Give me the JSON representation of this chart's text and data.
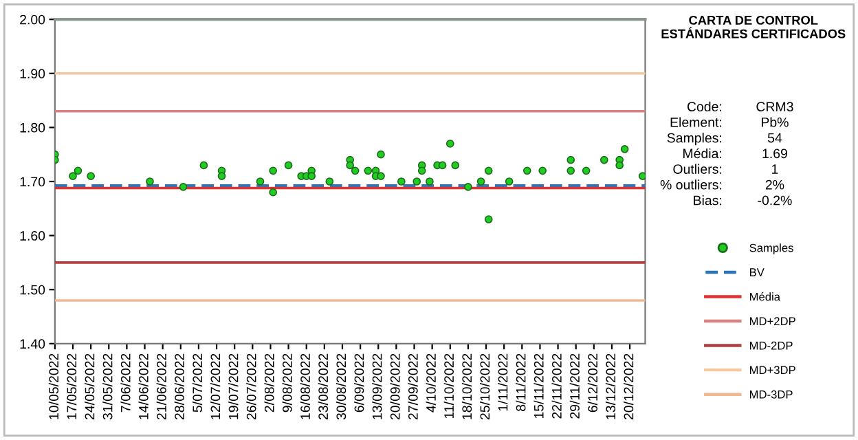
{
  "chart_data": {
    "type": "scatter",
    "title": "CARTA DE CONTROL\nESTÁNDARES CERTIFICADOS",
    "annotations": [
      "Code:",
      "CRM3",
      "Element:",
      "Pb%",
      "Samples:",
      "54",
      "Média:",
      "1.69",
      "Outliers:",
      "1",
      "% outliers:",
      "2%",
      "Bias:",
      "-0.2%"
    ],
    "series": [
      {
        "name": "Samples",
        "color": "#22cc22",
        "x": [
          "2022-05-10",
          "2022-05-10",
          "2022-05-17",
          "2022-05-19",
          "2022-05-24",
          "2022-06-16",
          "2022-06-29",
          "2022-07-07",
          "2022-07-14",
          "2022-07-14",
          "2022-07-29",
          "2022-08-03",
          "2022-08-03",
          "2022-08-09",
          "2022-08-14",
          "2022-08-16",
          "2022-08-18",
          "2022-08-18",
          "2022-08-25",
          "2022-09-02",
          "2022-09-02",
          "2022-09-04",
          "2022-09-09",
          "2022-09-12",
          "2022-09-12",
          "2022-09-14",
          "2022-09-14",
          "2022-09-22",
          "2022-09-28",
          "2022-09-30",
          "2022-09-30",
          "2022-10-03",
          "2022-10-06",
          "2022-10-08",
          "2022-10-11",
          "2022-10-13",
          "2022-10-18",
          "2022-10-23",
          "2022-10-26",
          "2022-10-26",
          "2022-11-03",
          "2022-11-10",
          "2022-11-16",
          "2022-11-27",
          "2022-11-27",
          "2022-12-03",
          "2022-12-10",
          "2022-12-16",
          "2022-12-16",
          "2022-12-18",
          "2022-12-25"
        ],
        "values": [
          1.75,
          1.74,
          1.71,
          1.72,
          1.71,
          1.7,
          1.69,
          1.73,
          1.72,
          1.71,
          1.7,
          1.72,
          1.68,
          1.73,
          1.71,
          1.71,
          1.72,
          1.71,
          1.7,
          1.74,
          1.73,
          1.72,
          1.72,
          1.72,
          1.71,
          1.71,
          1.75,
          1.7,
          1.7,
          1.73,
          1.72,
          1.7,
          1.73,
          1.73,
          1.77,
          1.73,
          1.69,
          1.7,
          1.72,
          1.63,
          1.7,
          1.72,
          1.72,
          1.74,
          1.72,
          1.72,
          1.74,
          1.74,
          1.73,
          1.76,
          1.71
        ]
      }
    ],
    "ref_lines": [
      {
        "axis": "y",
        "value": 1.692,
        "label": "BV",
        "color": "#2e75b6",
        "line_style": "dashed"
      },
      {
        "axis": "y",
        "value": 1.688,
        "label": "Média",
        "color": "#e03030",
        "line_style": "solid"
      },
      {
        "axis": "y",
        "value": 1.83,
        "label": "MD+2DP",
        "color": "#d98080",
        "line_style": "solid"
      },
      {
        "axis": "y",
        "value": 1.55,
        "label": "MD-2DP",
        "color": "#b04040",
        "line_style": "solid"
      },
      {
        "axis": "y",
        "value": 1.9,
        "label": "MD+3DP",
        "color": "#f5c9a0",
        "line_style": "solid"
      },
      {
        "axis": "y",
        "value": 1.48,
        "label": "MD-3DP",
        "color": "#f0b890",
        "line_style": "solid"
      }
    ],
    "xlim": [
      "2022-05-10",
      "2022-12-26"
    ],
    "xticks": [
      {
        "value": "2022-05-10",
        "label": "10/05/2022"
      },
      {
        "value": "2022-05-17",
        "label": "17/05/2022"
      },
      {
        "value": "2022-05-24",
        "label": "24/05/2022"
      },
      {
        "value": "2022-05-31",
        "label": "31/05/2022"
      },
      {
        "value": "2022-06-07",
        "label": "7/06/2022"
      },
      {
        "value": "2022-06-14",
        "label": "14/06/2022"
      },
      {
        "value": "2022-06-21",
        "label": "21/06/2022"
      },
      {
        "value": "2022-06-28",
        "label": "28/06/2022"
      },
      {
        "value": "2022-07-05",
        "label": "5/07/2022"
      },
      {
        "value": "2022-07-12",
        "label": "12/07/2022"
      },
      {
        "value": "2022-07-19",
        "label": "19/07/2022"
      },
      {
        "value": "2022-07-26",
        "label": "26/07/2022"
      },
      {
        "value": "2022-08-02",
        "label": "2/08/2022"
      },
      {
        "value": "2022-08-09",
        "label": "9/08/2022"
      },
      {
        "value": "2022-08-16",
        "label": "16/08/2022"
      },
      {
        "value": "2022-08-23",
        "label": "23/08/2022"
      },
      {
        "value": "2022-08-30",
        "label": "30/08/2022"
      },
      {
        "value": "2022-09-06",
        "label": "6/09/2022"
      },
      {
        "value": "2022-09-13",
        "label": "13/09/2022"
      },
      {
        "value": "2022-09-20",
        "label": "20/09/2022"
      },
      {
        "value": "2022-09-27",
        "label": "27/09/2022"
      },
      {
        "value": "2022-10-04",
        "label": "4/10/2022"
      },
      {
        "value": "2022-10-11",
        "label": "11/10/2022"
      },
      {
        "value": "2022-10-18",
        "label": "18/10/2022"
      },
      {
        "value": "2022-10-25",
        "label": "25/10/2022"
      },
      {
        "value": "2022-11-01",
        "label": "1/11/2022"
      },
      {
        "value": "2022-11-08",
        "label": "8/11/2022"
      },
      {
        "value": "2022-11-15",
        "label": "15/11/2022"
      },
      {
        "value": "2022-11-22",
        "label": "22/11/2022"
      },
      {
        "value": "2022-11-29",
        "label": "29/11/2022"
      },
      {
        "value": "2022-12-06",
        "label": "6/12/2022"
      },
      {
        "value": "2022-12-13",
        "label": "13/12/2022"
      },
      {
        "value": "2022-12-20",
        "label": "20/12/2022"
      }
    ],
    "ylim": [
      1.4,
      2.0
    ],
    "yticks": [
      {
        "value": 1.4,
        "label": "1.40"
      },
      {
        "value": 1.5,
        "label": "1.50"
      },
      {
        "value": 1.6,
        "label": "1.60"
      },
      {
        "value": 1.7,
        "label": "1.70"
      },
      {
        "value": 1.8,
        "label": "1.80"
      },
      {
        "value": 1.9,
        "label": "1.90"
      },
      {
        "value": 2.0,
        "label": "2.00"
      }
    ],
    "marker": "circle",
    "legend": "right"
  }
}
